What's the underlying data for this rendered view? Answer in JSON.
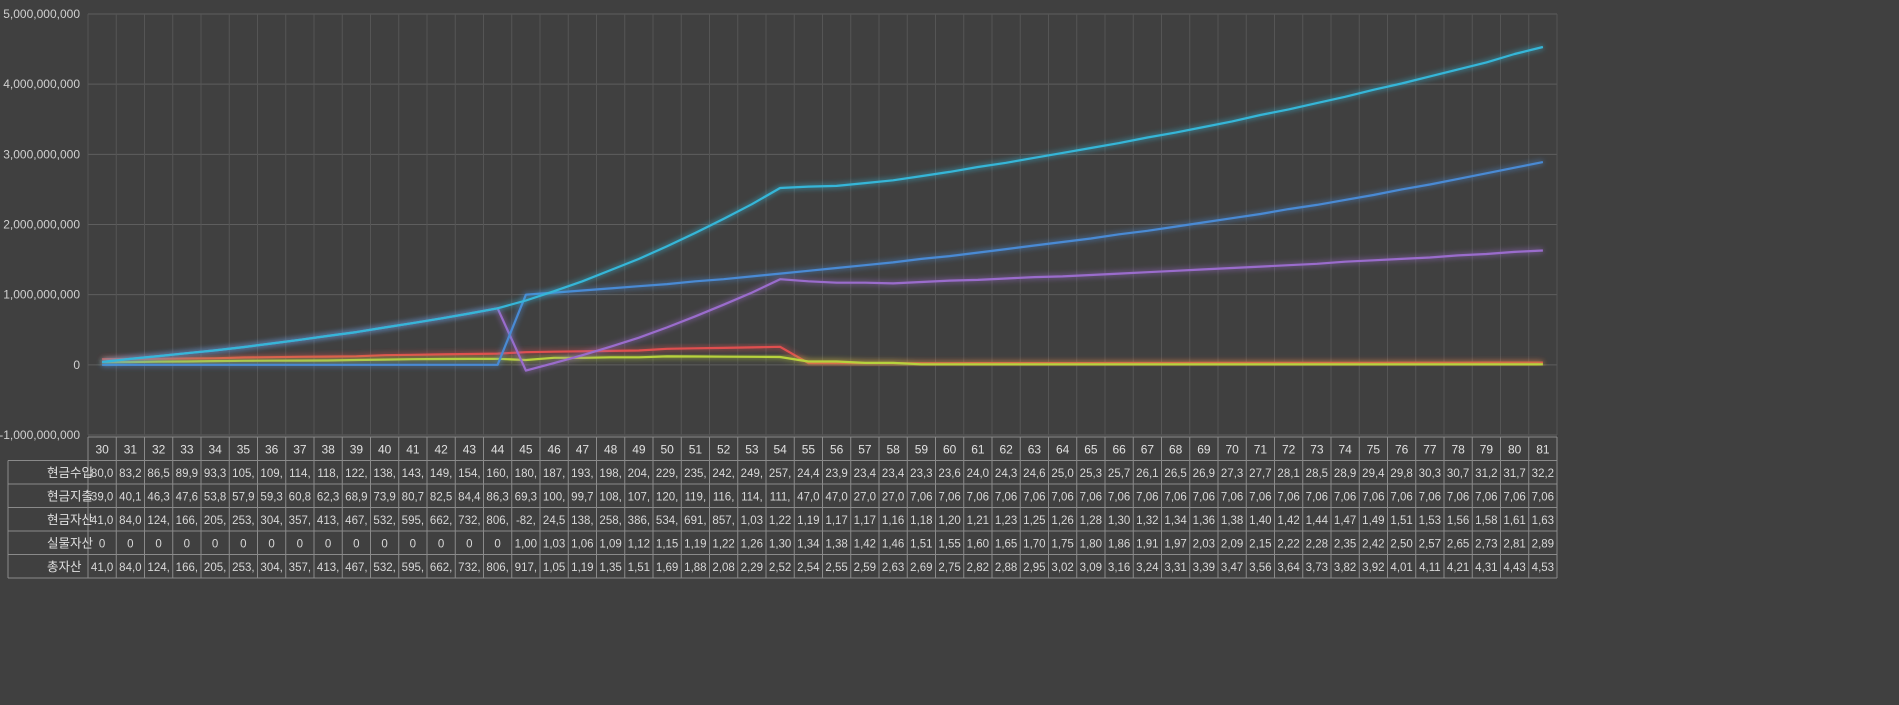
{
  "chart_data": {
    "type": "line",
    "title": "",
    "xlabel": "",
    "ylabel": "",
    "ylim": [
      -1000000000,
      5000000000
    ],
    "yticks": [
      -1000000000,
      0,
      1000000000,
      2000000000,
      3000000000,
      4000000000,
      5000000000
    ],
    "ytick_labels": [
      "-1,000,000,000",
      "0",
      "1,000,000,000",
      "2,000,000,000",
      "3,000,000,000",
      "4,000,000,000",
      "5,000,000,000"
    ],
    "grid": true,
    "legend": "data-table-bottom",
    "categories": [
      "30",
      "31",
      "32",
      "33",
      "34",
      "35",
      "36",
      "37",
      "38",
      "39",
      "40",
      "41",
      "42",
      "43",
      "44",
      "45",
      "46",
      "47",
      "48",
      "49",
      "50",
      "51",
      "52",
      "53",
      "54",
      "55",
      "56",
      "57",
      "58",
      "59",
      "60",
      "61",
      "62",
      "63",
      "64",
      "65",
      "66",
      "67",
      "68",
      "69",
      "70",
      "71",
      "72",
      "73",
      "74",
      "75",
      "76",
      "77",
      "78",
      "79",
      "80",
      "81"
    ],
    "series": [
      {
        "name": "현금수입",
        "color": "#e05050",
        "values": [
          80000000,
          83200000,
          86500000,
          89900000,
          93300000,
          105000000,
          109000000,
          114000000,
          118000000,
          122000000,
          138000000,
          143000000,
          149000000,
          154000000,
          160000000,
          180000000,
          187000000,
          193000000,
          198000000,
          204000000,
          229000000,
          235000000,
          242000000,
          249000000,
          257000000,
          24400000,
          23900000,
          23400000,
          23400000,
          23300000,
          23600000,
          24000000,
          24300000,
          24600000,
          25000000,
          25300000,
          25700000,
          26100000,
          26500000,
          26900000,
          27300000,
          27700000,
          28100000,
          28500000,
          28900000,
          29400000,
          29800000,
          30300000,
          30700000,
          31200000,
          31700000,
          32200000
        ],
        "table": [
          "80,0",
          "83,2",
          "86,5",
          "89,9",
          "93,3",
          "105,",
          "109,",
          "114,",
          "118,",
          "122,",
          "138,",
          "143,",
          "149,",
          "154,",
          "160,",
          "180,",
          "187,",
          "193,",
          "198,",
          "204,",
          "229,",
          "235,",
          "242,",
          "249,",
          "257,",
          "24,4",
          "23,9",
          "23,4",
          "23,4",
          "23,3",
          "23,6",
          "24,0",
          "24,3",
          "24,6",
          "25,0",
          "25,3",
          "25,7",
          "26,1",
          "26,5",
          "26,9",
          "27,3",
          "27,7",
          "28,1",
          "28,5",
          "28,9",
          "29,4",
          "29,8",
          "30,3",
          "30,7",
          "31,2",
          "31,7",
          "32,2"
        ]
      },
      {
        "name": "현금지출",
        "color": "#b7d23c",
        "values": [
          39000000,
          40100000,
          46300000,
          47600000,
          53800000,
          57900000,
          59300000,
          60800000,
          62300000,
          68900000,
          73900000,
          80700000,
          82500000,
          84400000,
          86300000,
          69300000,
          100000000,
          99700000,
          108000000,
          107000000,
          120000000,
          119000000,
          116000000,
          114000000,
          111000000,
          47000000,
          47000000,
          27000000,
          27000000,
          7060000,
          7060000,
          7060000,
          7060000,
          7060000,
          7060000,
          7060000,
          7060000,
          7060000,
          7060000,
          7060000,
          7060000,
          7060000,
          7060000,
          7060000,
          7060000,
          7060000,
          7060000,
          7060000,
          7060000,
          7060000,
          7060000,
          7060000
        ],
        "table": [
          "39,0",
          "40,1",
          "46,3",
          "47,6",
          "53,8",
          "57,9",
          "59,3",
          "60,8",
          "62,3",
          "68,9",
          "73,9",
          "80,7",
          "82,5",
          "84,4",
          "86,3",
          "69,3",
          "100,",
          "99,7",
          "108,",
          "107,",
          "120,",
          "119,",
          "116,",
          "114,",
          "111,",
          "47,0",
          "47,0",
          "27,0",
          "27,0",
          "7,06",
          "7,06",
          "7,06",
          "7,06",
          "7,06",
          "7,06",
          "7,06",
          "7,06",
          "7,06",
          "7,06",
          "7,06",
          "7,06",
          "7,06",
          "7,06",
          "7,06",
          "7,06",
          "7,06",
          "7,06",
          "7,06",
          "7,06",
          "7,06",
          "7,06",
          "7,06"
        ]
      },
      {
        "name": "현금자산",
        "color": "#9a6ccc",
        "values": [
          41000000,
          84000000,
          124000000,
          166000000,
          205000000,
          253000000,
          304000000,
          357000000,
          413000000,
          467000000,
          532000000,
          595000000,
          662000000,
          732000000,
          806000000,
          -82000000,
          24500000,
          138000000,
          258000000,
          386000000,
          534000000,
          691000000,
          857000000,
          1030000000,
          1220000000,
          1190000000,
          1170000000,
          1170000000,
          1160000000,
          1180000000,
          1200000000,
          1210000000,
          1230000000,
          1250000000,
          1260000000,
          1280000000,
          1300000000,
          1320000000,
          1340000000,
          1360000000,
          1380000000,
          1400000000,
          1420000000,
          1440000000,
          1470000000,
          1490000000,
          1510000000,
          1530000000,
          1560000000,
          1580000000,
          1610000000,
          1630000000
        ],
        "table": [
          "41,0",
          "84,0",
          "124,",
          "166,",
          "205,",
          "253,",
          "304,",
          "357,",
          "413,",
          "467,",
          "532,",
          "595,",
          "662,",
          "732,",
          "806,",
          "-82,",
          "24,5",
          "138,",
          "258,",
          "386,",
          "534,",
          "691,",
          "857,",
          "1,03",
          "1,22",
          "1,19",
          "1,17",
          "1,17",
          "1,16",
          "1,18",
          "1,20",
          "1,21",
          "1,23",
          "1,25",
          "1,26",
          "1,28",
          "1,30",
          "1,32",
          "1,34",
          "1,36",
          "1,38",
          "1,40",
          "1,42",
          "1,44",
          "1,47",
          "1,49",
          "1,51",
          "1,53",
          "1,56",
          "1,58",
          "1,61",
          "1,63"
        ]
      },
      {
        "name": "실물자산",
        "color": "#4a8ad4",
        "values": [
          0,
          0,
          0,
          0,
          0,
          0,
          0,
          0,
          0,
          0,
          0,
          0,
          0,
          0,
          0,
          1000000000,
          1030000000,
          1060000000,
          1090000000,
          1120000000,
          1150000000,
          1190000000,
          1220000000,
          1260000000,
          1300000000,
          1340000000,
          1380000000,
          1420000000,
          1460000000,
          1510000000,
          1550000000,
          1600000000,
          1650000000,
          1700000000,
          1750000000,
          1800000000,
          1860000000,
          1910000000,
          1970000000,
          2030000000,
          2090000000,
          2150000000,
          2220000000,
          2280000000,
          2350000000,
          2420000000,
          2500000000,
          2570000000,
          2650000000,
          2730000000,
          2810000000,
          2890000000
        ],
        "table": [
          "0",
          "0",
          "0",
          "0",
          "0",
          "0",
          "0",
          "0",
          "0",
          "0",
          "0",
          "0",
          "0",
          "0",
          "0",
          "1,00",
          "1,03",
          "1,06",
          "1,09",
          "1,12",
          "1,15",
          "1,19",
          "1,22",
          "1,26",
          "1,30",
          "1,34",
          "1,38",
          "1,42",
          "1,46",
          "1,51",
          "1,55",
          "1,60",
          "1,65",
          "1,70",
          "1,75",
          "1,80",
          "1,86",
          "1,91",
          "1,97",
          "2,03",
          "2,09",
          "2,15",
          "2,22",
          "2,28",
          "2,35",
          "2,42",
          "2,50",
          "2,57",
          "2,65",
          "2,73",
          "2,81",
          "2,89"
        ]
      },
      {
        "name": "총자산",
        "color": "#36b6d8",
        "values": [
          41000000,
          84000000,
          124000000,
          166000000,
          205000000,
          253000000,
          304000000,
          357000000,
          413000000,
          467000000,
          532000000,
          595000000,
          662000000,
          732000000,
          806000000,
          917000000,
          1050000000,
          1190000000,
          1350000000,
          1510000000,
          1690000000,
          1880000000,
          2080000000,
          2290000000,
          2520000000,
          2540000000,
          2550000000,
          2590000000,
          2630000000,
          2690000000,
          2750000000,
          2820000000,
          2880000000,
          2950000000,
          3020000000,
          3090000000,
          3160000000,
          3240000000,
          3310000000,
          3390000000,
          3470000000,
          3560000000,
          3640000000,
          3730000000,
          3820000000,
          3920000000,
          4010000000,
          4110000000,
          4210000000,
          4310000000,
          4430000000,
          4530000000
        ],
        "table": [
          "41,0",
          "84,0",
          "124,",
          "166,",
          "205,",
          "253,",
          "304,",
          "357,",
          "413,",
          "467,",
          "532,",
          "595,",
          "662,",
          "732,",
          "806,",
          "917,",
          "1,05",
          "1,19",
          "1,35",
          "1,51",
          "1,69",
          "1,88",
          "2,08",
          "2,29",
          "2,52",
          "2,54",
          "2,55",
          "2,59",
          "2,63",
          "2,69",
          "2,75",
          "2,82",
          "2,88",
          "2,95",
          "3,02",
          "3,09",
          "3,16",
          "3,24",
          "3,31",
          "3,39",
          "3,47",
          "3,56",
          "3,64",
          "3,73",
          "3,82",
          "3,92",
          "4,01",
          "4,11",
          "4,21",
          "4,31",
          "4,43",
          "4,53"
        ]
      }
    ]
  }
}
